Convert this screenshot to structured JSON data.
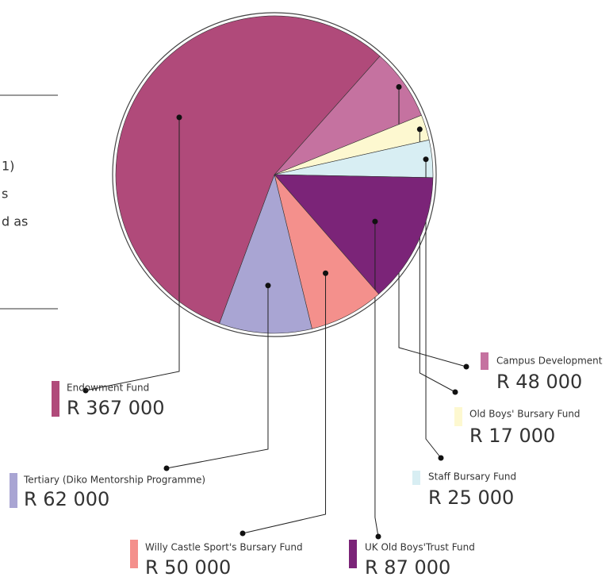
{
  "chart_data": {
    "type": "pie",
    "categories": [
      "Campus Development",
      "Old Boys' Bursary Fund",
      "Staff Bursary Fund",
      "UK Old Boys'Trust Fund",
      "Willy Castle Sport's Bursary Fund",
      "Tertiary (Diko Mentorship Programme)",
      "Endowment Fund"
    ],
    "values": [
      48000,
      17000,
      25000,
      87000,
      50000,
      62000,
      367000
    ],
    "value_labels": [
      "R 48 000",
      "R 17 000",
      "R 25 000",
      "R 87 000",
      "R 50 000",
      "R 62 000",
      "R 367 000"
    ],
    "colors": [
      "#c572a0",
      "#fdf8d0",
      "#d8eef3",
      "#7b2478",
      "#f4908c",
      "#a9a5d3",
      "#b04a7a"
    ],
    "annotations": [
      "1)",
      "s",
      "d as"
    ]
  }
}
